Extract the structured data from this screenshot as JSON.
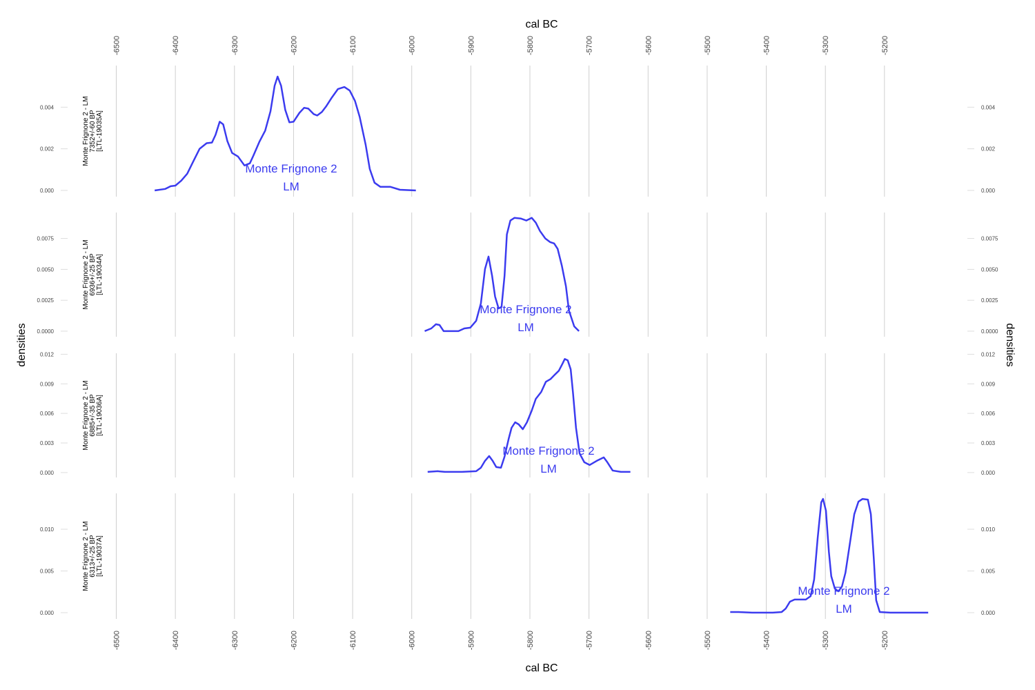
{
  "chart_data": [
    {
      "type": "line",
      "xlabel": "cal BC",
      "ylabel": "densities",
      "y2label": "densities",
      "label": [
        "Monte Frignone 2 - LM",
        "7352+/-60 BP",
        "[LTL-19035A]"
      ],
      "annotation": [
        "Monte Frignone 2",
        "LM"
      ],
      "color": "#3b3bef",
      "grid": true,
      "xlim": [
        -6580,
        -5062
      ],
      "xticks": [
        -6500,
        -6400,
        -6300,
        -6200,
        -6100,
        -6000,
        -5900,
        -5800,
        -5700,
        -5600,
        -5500,
        -5400,
        -5300,
        -5200
      ],
      "ylim": [
        -0.0003,
        0.006
      ],
      "yticks": [
        {
          "value": 0,
          "label": "0.000"
        },
        {
          "value": 0.002,
          "label": "0.002"
        },
        {
          "value": 0.004,
          "label": "0.004"
        }
      ],
      "x": [
        -6435,
        -6417,
        -6408,
        -6400,
        -6390,
        -6380,
        -6370,
        -6359,
        -6347,
        -6338,
        -6332,
        -6325,
        -6319,
        -6312,
        -6304,
        -6294,
        -6283,
        -6274,
        -6268,
        -6258,
        -6248,
        -6239,
        -6232,
        -6227,
        -6221,
        -6214,
        -6207,
        -6200,
        -6190,
        -6182,
        -6175,
        -6166,
        -6160,
        -6152,
        -6145,
        -6135,
        -6125,
        -6114,
        -6105,
        -6096,
        -6088,
        -6078,
        -6071,
        -6063,
        -6053,
        -6036,
        -6020,
        -5993
      ],
      "values": [
        0,
        7e-05,
        0.0002,
        0.00023,
        0.00047,
        0.0008,
        0.00137,
        0.002,
        0.00227,
        0.0023,
        0.00267,
        0.0033,
        0.00317,
        0.00237,
        0.0018,
        0.00163,
        0.0012,
        0.0013,
        0.00167,
        0.00233,
        0.00287,
        0.0038,
        0.00503,
        0.00547,
        0.00503,
        0.00387,
        0.00327,
        0.0033,
        0.00373,
        0.00397,
        0.00393,
        0.00367,
        0.0036,
        0.00377,
        0.00403,
        0.00447,
        0.00487,
        0.00497,
        0.0048,
        0.0043,
        0.00353,
        0.0022,
        0.00103,
        0.00037,
        0.00017,
        0.00017,
        3e-05,
        0
      ]
    },
    {
      "type": "line",
      "label": [
        "Monte Frignone 2 - LM",
        "6936+/-25 BP",
        "[LTL-19034A]"
      ],
      "annotation": [
        "Monte Frignone 2",
        "LM"
      ],
      "color": "#3b3bef",
      "grid": true,
      "xlim": [
        -6580,
        -5062
      ],
      "xticks": [
        -6500,
        -6400,
        -6300,
        -6200,
        -6100,
        -6000,
        -5900,
        -5800,
        -5700,
        -5600,
        -5500,
        -5400,
        -5300,
        -5200
      ],
      "ylim": [
        -0.00045,
        0.0096
      ],
      "yticks": [
        {
          "value": 0,
          "label": "0.0000"
        },
        {
          "value": 0.0025,
          "label": "0.0025"
        },
        {
          "value": 0.005,
          "label": "0.0050"
        },
        {
          "value": 0.0075,
          "label": "0.0075"
        }
      ],
      "x": [
        -5978,
        -5967,
        -5959,
        -5953,
        -5946,
        -5921,
        -5911,
        -5901,
        -5891,
        -5883,
        -5876,
        -5870,
        -5864,
        -5859,
        -5853,
        -5848,
        -5843,
        -5839,
        -5833,
        -5826,
        -5815,
        -5806,
        -5797,
        -5790,
        -5783,
        -5774,
        -5766,
        -5759,
        -5753,
        -5746,
        -5739,
        -5734,
        -5725,
        -5717
      ],
      "values": [
        0,
        0.00022,
        0.00056,
        0.0005,
        0,
        0,
        0.00022,
        0.00028,
        0.00084,
        0.00224,
        0.00503,
        0.00604,
        0.00447,
        0.0028,
        0.00184,
        0.00196,
        0.00447,
        0.00783,
        0.00895,
        0.00917,
        0.00911,
        0.00895,
        0.00917,
        0.00878,
        0.00811,
        0.0075,
        0.00721,
        0.0071,
        0.00666,
        0.00531,
        0.00363,
        0.00168,
        0.00039,
        0
      ]
    },
    {
      "type": "line",
      "label": [
        "Monte Frignone 2 - LM",
        "6885+/-35 BP",
        "[LTL-19036A]"
      ],
      "annotation": [
        "Monte Frignone 2",
        "LM"
      ],
      "color": "#3b3bef",
      "grid": true,
      "xlim": [
        -6580,
        -5062
      ],
      "xticks": [
        -6500,
        -6400,
        -6300,
        -6200,
        -6100,
        -6000,
        -5900,
        -5800,
        -5700,
        -5600,
        -5500,
        -5400,
        -5300,
        -5200
      ],
      "ylim": [
        -0.0005,
        0.0121
      ],
      "yticks": [
        {
          "value": 0,
          "label": "0.000"
        },
        {
          "value": 0.003,
          "label": "0.003"
        },
        {
          "value": 0.006,
          "label": "0.006"
        },
        {
          "value": 0.009,
          "label": "0.009"
        },
        {
          "value": 0.012,
          "label": "0.012"
        }
      ],
      "x": [
        -5973,
        -5956,
        -5944,
        -5915,
        -5891,
        -5883,
        -5876,
        -5869,
        -5863,
        -5857,
        -5849,
        -5843,
        -5836,
        -5831,
        -5825,
        -5819,
        -5812,
        -5805,
        -5797,
        -5790,
        -5781,
        -5773,
        -5765,
        -5757,
        -5751,
        -5745,
        -5741,
        -5736,
        -5731,
        -5727,
        -5722,
        -5716,
        -5708,
        -5699,
        -5687,
        -5675,
        -5669,
        -5660,
        -5646,
        -5630
      ],
      "values": [
        7e-05,
        0.00014,
        7e-05,
        7e-05,
        0.00014,
        0.00049,
        0.00119,
        0.00168,
        0.00119,
        0.00056,
        0.00049,
        0.00161,
        0.00342,
        0.00454,
        0.0051,
        0.00489,
        0.0044,
        0.0051,
        0.00628,
        0.00747,
        0.00817,
        0.00921,
        0.00949,
        0.00998,
        0.01033,
        0.01103,
        0.01152,
        0.01138,
        0.01047,
        0.00803,
        0.00454,
        0.00195,
        0.00105,
        0.00077,
        0.00119,
        0.00154,
        0.00105,
        0.00021,
        7e-05,
        7e-05
      ]
    },
    {
      "type": "line",
      "xlabel": "cal BC",
      "label": [
        "Monte Frignone 2 - LM",
        "6313+/-25 BP",
        "[LTL-19037A]"
      ],
      "annotation": [
        "Monte Frignone 2",
        "LM"
      ],
      "color": "#3b3bef",
      "grid": true,
      "xlim": [
        -6580,
        -5062
      ],
      "xticks": [
        -6500,
        -6400,
        -6300,
        -6200,
        -6100,
        -6000,
        -5900,
        -5800,
        -5700,
        -5600,
        -5500,
        -5400,
        -5300,
        -5200
      ],
      "ylim": [
        -0.00075,
        0.0143
      ],
      "yticks": [
        {
          "value": 0,
          "label": "0.000"
        },
        {
          "value": 0.005,
          "label": "0.005"
        },
        {
          "value": 0.01,
          "label": "0.010"
        }
      ],
      "x": [
        -5461,
        -5447,
        -5424,
        -5389,
        -5374,
        -5367,
        -5360,
        -5352,
        -5342,
        -5333,
        -5325,
        -5319,
        -5313,
        -5307,
        -5304,
        -5299,
        -5294,
        -5290,
        -5284,
        -5278,
        -5272,
        -5266,
        -5258,
        -5251,
        -5244,
        -5237,
        -5228,
        -5223,
        -5218,
        -5214,
        -5208,
        -5190,
        -5126
      ],
      "values": [
        8e-05,
        8e-05,
        0,
        0,
        8e-05,
        0.0005,
        0.00132,
        0.00157,
        0.00157,
        0.00157,
        0.00198,
        0.00397,
        0.00892,
        0.01322,
        0.01363,
        0.01223,
        0.00727,
        0.00438,
        0.00289,
        0.00256,
        0.00314,
        0.00479,
        0.00851,
        0.01181,
        0.0133,
        0.01363,
        0.01355,
        0.01181,
        0.00644,
        0.00149,
        8e-05,
        0,
        0
      ]
    }
  ]
}
